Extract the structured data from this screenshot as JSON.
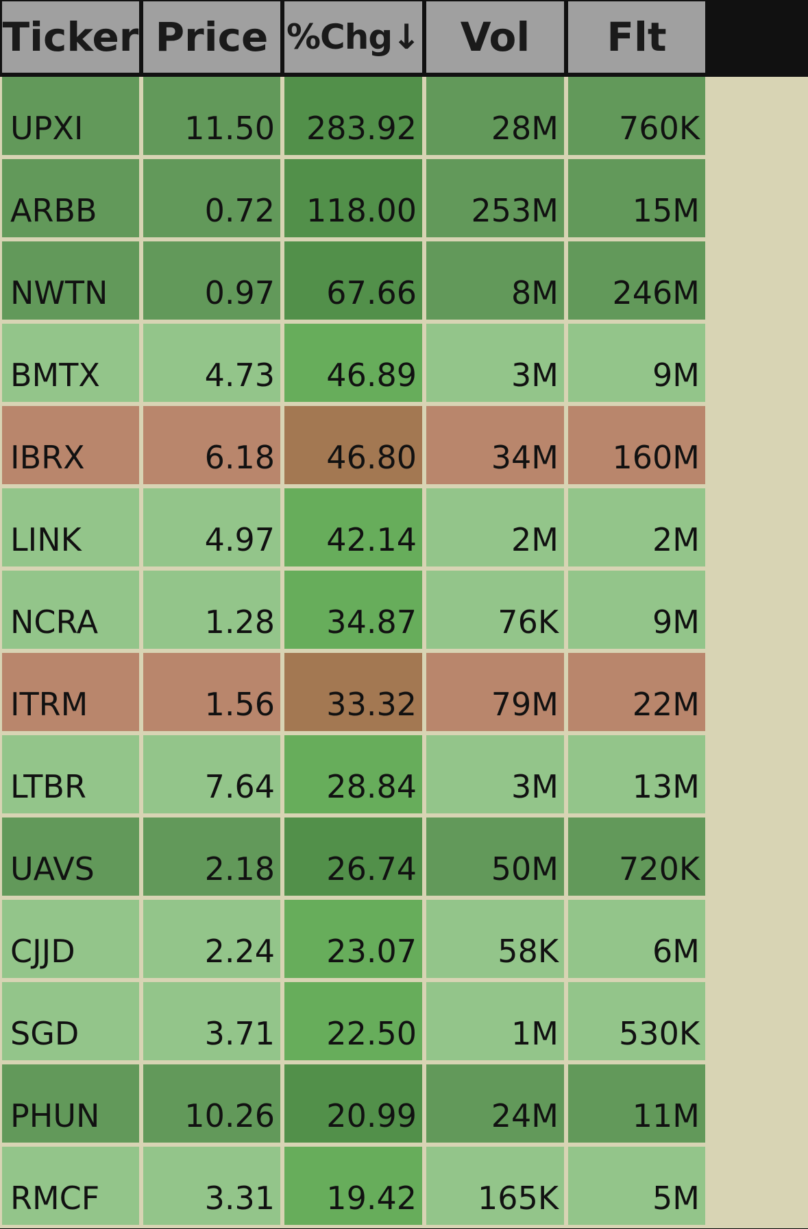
{
  "screener": {
    "headers": [
      {
        "key": "ticker",
        "label": "Ticker"
      },
      {
        "key": "price",
        "label": "Price"
      },
      {
        "key": "chg",
        "label": "%Chg↓"
      },
      {
        "key": "vol",
        "label": "Vol"
      },
      {
        "key": "flt",
        "label": "Flt"
      }
    ],
    "colors": {
      "dark_green": "#62995a",
      "dark_green_chg": "#52904a",
      "light_green": "#93c58a",
      "light_green_chg": "#67ad5b",
      "red": "#b9866c",
      "red_chg": "#a37852",
      "header_bg": "#a0a0a0",
      "grid": "#d8d4b4"
    },
    "rows": [
      {
        "ticker": "UPXI",
        "price": "11.50",
        "chg": "283.92",
        "vol": "28M",
        "flt": "760K",
        "tone": "dark_green"
      },
      {
        "ticker": "ARBB",
        "price": "0.72",
        "chg": "118.00",
        "vol": "253M",
        "flt": "15M",
        "tone": "dark_green"
      },
      {
        "ticker": "NWTN",
        "price": "0.97",
        "chg": "67.66",
        "vol": "8M",
        "flt": "246M",
        "tone": "dark_green"
      },
      {
        "ticker": "BMTX",
        "price": "4.73",
        "chg": "46.89",
        "vol": "3M",
        "flt": "9M",
        "tone": "light_green"
      },
      {
        "ticker": "IBRX",
        "price": "6.18",
        "chg": "46.80",
        "vol": "34M",
        "flt": "160M",
        "tone": "red"
      },
      {
        "ticker": "LINK",
        "price": "4.97",
        "chg": "42.14",
        "vol": "2M",
        "flt": "2M",
        "tone": "light_green"
      },
      {
        "ticker": "NCRA",
        "price": "1.28",
        "chg": "34.87",
        "vol": "76K",
        "flt": "9M",
        "tone": "light_green"
      },
      {
        "ticker": "ITRM",
        "price": "1.56",
        "chg": "33.32",
        "vol": "79M",
        "flt": "22M",
        "tone": "red"
      },
      {
        "ticker": "LTBR",
        "price": "7.64",
        "chg": "28.84",
        "vol": "3M",
        "flt": "13M",
        "tone": "light_green"
      },
      {
        "ticker": "UAVS",
        "price": "2.18",
        "chg": "26.74",
        "vol": "50M",
        "flt": "720K",
        "tone": "dark_green"
      },
      {
        "ticker": "CJJD",
        "price": "2.24",
        "chg": "23.07",
        "vol": "58K",
        "flt": "6M",
        "tone": "light_green"
      },
      {
        "ticker": "SGD",
        "price": "3.71",
        "chg": "22.50",
        "vol": "1M",
        "flt": "530K",
        "tone": "light_green"
      },
      {
        "ticker": "PHUN",
        "price": "10.26",
        "chg": "20.99",
        "vol": "24M",
        "flt": "11M",
        "tone": "dark_green"
      },
      {
        "ticker": "RMCF",
        "price": "3.31",
        "chg": "19.42",
        "vol": "165K",
        "flt": "5M",
        "tone": "light_green"
      }
    ]
  }
}
